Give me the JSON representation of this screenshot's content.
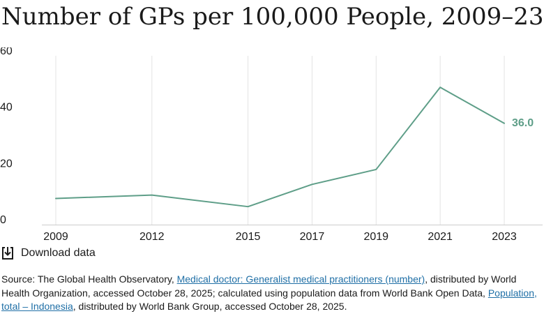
{
  "title": "Number of GPs per 100,000 People, 2009–23",
  "download_label": "Download data",
  "source": {
    "prefix": "Source: The Global Health Observatory, ",
    "link1": "Medical doctor: Generalist medical practitioners (number)",
    "mid": ", distributed by World Health Organization, accessed October 28, 2025; calculated using population data from World Bank Open Data, ",
    "link2": "Population, total – Indonesia",
    "suffix": ", distributed by World Bank Group, accessed October 28, 2025."
  },
  "colors": {
    "line": "#5e9e88",
    "grid": "#e3e3e3",
    "axis": "#cccccc",
    "text": "#1a1a1a",
    "link": "#1f6fa6"
  },
  "chart_data": {
    "type": "line",
    "x": [
      2009,
      2012,
      2015,
      2017,
      2019,
      2021,
      2023
    ],
    "series": [
      {
        "values": [
          9.3,
          10.5,
          6.4,
          14.3,
          19.6,
          48.8,
          36.0
        ],
        "color": "#5e9e88"
      }
    ],
    "end_label": "36.0",
    "ylim": [
      0,
      60
    ],
    "yticks": [
      0,
      20,
      40,
      60
    ],
    "xticks": [
      "2009",
      "2012",
      "2015",
      "2017",
      "2019",
      "2021",
      "2023"
    ],
    "grid": "vertical",
    "xlabel": "",
    "ylabel": ""
  }
}
